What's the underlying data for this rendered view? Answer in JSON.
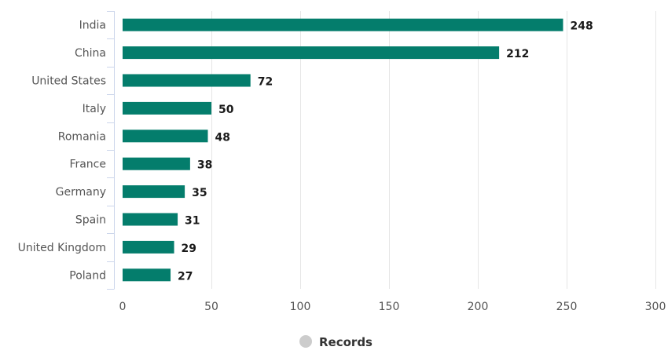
{
  "chart_data": {
    "type": "bar",
    "orientation": "horizontal",
    "categories": [
      "India",
      "China",
      "United States",
      "Italy",
      "Romania",
      "France",
      "Germany",
      "Spain",
      "United Kingdom",
      "Poland"
    ],
    "series": [
      {
        "name": "Records",
        "values": [
          248,
          212,
          72,
          50,
          48,
          38,
          35,
          31,
          29,
          27
        ],
        "color": "#047d6c"
      }
    ],
    "xlim": [
      0,
      300
    ],
    "xticks": [
      0,
      50,
      100,
      150,
      200,
      250,
      300
    ],
    "grid": true,
    "data_labels": true,
    "legend": {
      "position": "bottom-center",
      "marker_color": "#cccccc"
    },
    "title": "",
    "xlabel": "",
    "ylabel": ""
  }
}
